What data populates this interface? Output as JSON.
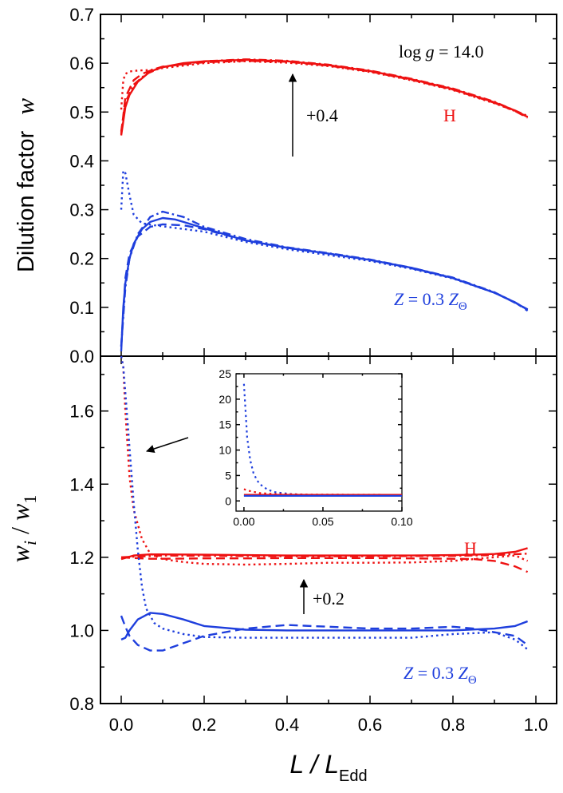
{
  "chart_data": [
    {
      "type": "line",
      "panel": "top",
      "ylabel": "Dilution factor",
      "ylabel_symbol": "w",
      "xlim": [
        -0.05,
        1.05
      ],
      "ylim": [
        0.0,
        0.7
      ],
      "xticks": [
        "0.0",
        "0.2",
        "0.4",
        "0.6",
        "0.8",
        "1.0"
      ],
      "yticks": [
        "0.0",
        "0.1",
        "0.2",
        "0.3",
        "0.4",
        "0.5",
        "0.6",
        "0.7"
      ],
      "annotation_gravity": {
        "prefix": "log ",
        "var": "g",
        "rest": " = 14.0"
      },
      "annotation_shift": "+0.4",
      "label_H": "H",
      "label_Z": {
        "var": "Z",
        "mid": " = 0.3 ",
        "var2": "Z",
        "sub": "Θ"
      },
      "series": [
        {
          "group": "H",
          "dash": "solid",
          "color": "#ee1111",
          "x": [
            0.0,
            0.01,
            0.02,
            0.04,
            0.07,
            0.1,
            0.15,
            0.2,
            0.3,
            0.4,
            0.5,
            0.6,
            0.7,
            0.8,
            0.9,
            0.95,
            0.98
          ],
          "y": [
            0.452,
            0.51,
            0.535,
            0.562,
            0.583,
            0.592,
            0.6,
            0.604,
            0.607,
            0.604,
            0.596,
            0.584,
            0.567,
            0.547,
            0.52,
            0.503,
            0.49
          ]
        },
        {
          "group": "H",
          "dash": "dashed",
          "color": "#ee1111",
          "x": [
            0.0,
            0.01,
            0.03,
            0.05,
            0.08,
            0.1,
            0.2,
            0.3,
            0.4,
            0.5,
            0.6,
            0.7,
            0.8,
            0.9,
            0.95,
            0.98
          ],
          "y": [
            0.455,
            0.53,
            0.565,
            0.578,
            0.588,
            0.593,
            0.602,
            0.605,
            0.603,
            0.595,
            0.583,
            0.566,
            0.546,
            0.519,
            0.502,
            0.488
          ]
        },
        {
          "group": "H",
          "dash": "dotted",
          "color": "#ee1111",
          "x": [
            0.0,
            0.005,
            0.01,
            0.02,
            0.04,
            0.07,
            0.1,
            0.2,
            0.3,
            0.4,
            0.5,
            0.6,
            0.7,
            0.8,
            0.9,
            0.95,
            0.98
          ],
          "y": [
            0.505,
            0.565,
            0.578,
            0.583,
            0.585,
            0.586,
            0.59,
            0.6,
            0.604,
            0.601,
            0.594,
            0.582,
            0.565,
            0.545,
            0.518,
            0.502,
            0.49
          ]
        },
        {
          "group": "H",
          "dash": "dashdot",
          "color": "#ee1111",
          "x": [
            0.0,
            0.01,
            0.03,
            0.06,
            0.1,
            0.2,
            0.3,
            0.4,
            0.5,
            0.6,
            0.7,
            0.8,
            0.9,
            0.98
          ],
          "y": [
            0.46,
            0.52,
            0.556,
            0.578,
            0.592,
            0.604,
            0.608,
            0.605,
            0.597,
            0.585,
            0.568,
            0.548,
            0.521,
            0.492
          ]
        },
        {
          "group": "Z",
          "dash": "solid",
          "color": "#1f3fdd",
          "x": [
            0.0,
            0.005,
            0.01,
            0.02,
            0.03,
            0.05,
            0.07,
            0.1,
            0.13,
            0.15,
            0.2,
            0.3,
            0.4,
            0.5,
            0.6,
            0.7,
            0.8,
            0.9,
            0.95,
            0.98
          ],
          "y": [
            0.01,
            0.1,
            0.15,
            0.2,
            0.23,
            0.26,
            0.275,
            0.283,
            0.28,
            0.275,
            0.262,
            0.237,
            0.222,
            0.21,
            0.197,
            0.181,
            0.16,
            0.13,
            0.11,
            0.095
          ]
        },
        {
          "group": "Z",
          "dash": "dashed",
          "color": "#1f3fdd",
          "x": [
            0.0,
            0.01,
            0.02,
            0.04,
            0.07,
            0.1,
            0.15,
            0.2,
            0.3,
            0.4,
            0.5,
            0.6,
            0.7,
            0.8,
            0.9,
            0.95,
            0.98
          ],
          "y": [
            0.02,
            0.16,
            0.21,
            0.245,
            0.265,
            0.27,
            0.268,
            0.26,
            0.237,
            0.222,
            0.21,
            0.197,
            0.18,
            0.16,
            0.13,
            0.11,
            0.093
          ]
        },
        {
          "group": "Z",
          "dash": "dotted",
          "color": "#1f3fdd",
          "x": [
            0.0,
            0.005,
            0.01,
            0.02,
            0.03,
            0.05,
            0.08,
            0.1,
            0.2,
            0.3,
            0.4,
            0.5,
            0.6,
            0.7,
            0.8,
            0.9,
            0.95,
            0.98
          ],
          "y": [
            0.3,
            0.38,
            0.375,
            0.33,
            0.29,
            0.272,
            0.268,
            0.266,
            0.255,
            0.234,
            0.219,
            0.207,
            0.195,
            0.179,
            0.159,
            0.13,
            0.11,
            0.095
          ]
        },
        {
          "group": "Z",
          "dash": "dashdot",
          "color": "#1f3fdd",
          "x": [
            0.0,
            0.01,
            0.02,
            0.04,
            0.07,
            0.1,
            0.15,
            0.2,
            0.3,
            0.4,
            0.5,
            0.6,
            0.7,
            0.8,
            0.9,
            0.98
          ],
          "y": [
            0.02,
            0.14,
            0.2,
            0.25,
            0.285,
            0.296,
            0.285,
            0.265,
            0.24,
            0.223,
            0.211,
            0.198,
            0.181,
            0.161,
            0.131,
            0.096
          ]
        }
      ]
    },
    {
      "type": "line",
      "panel": "bottom",
      "xlabel": "L / L",
      "xlabel_sub": "Edd",
      "ylabel_parts": {
        "w": "w",
        "i": "i",
        "slash": " / ",
        "one": "1"
      },
      "xlim": [
        -0.05,
        1.05
      ],
      "ylim": [
        0.8,
        1.75
      ],
      "xticks": [
        "0.0",
        "0.2",
        "0.4",
        "0.6",
        "0.8",
        "1.0"
      ],
      "yticks": [
        "0.8",
        "1.0",
        "1.2",
        "1.4",
        "1.6"
      ],
      "annotation_shift": "+0.2",
      "label_H": "H",
      "label_Z": {
        "var": "Z",
        "mid": " = 0.3 ",
        "var2": "Z",
        "sub": "Θ"
      },
      "series": [
        {
          "group": "H",
          "dash": "solid",
          "color": "#ee1111",
          "x": [
            0.0,
            0.03,
            0.07,
            0.1,
            0.2,
            0.3,
            0.4,
            0.5,
            0.6,
            0.7,
            0.8,
            0.85,
            0.9,
            0.95,
            0.98
          ],
          "y": [
            1.195,
            1.205,
            1.208,
            1.208,
            1.207,
            1.206,
            1.205,
            1.205,
            1.205,
            1.205,
            1.206,
            1.207,
            1.209,
            1.215,
            1.225
          ]
        },
        {
          "group": "H",
          "dash": "dashed",
          "color": "#ee1111",
          "x": [
            0.0,
            0.03,
            0.07,
            0.1,
            0.2,
            0.3,
            0.4,
            0.5,
            0.6,
            0.7,
            0.8,
            0.85,
            0.9,
            0.95,
            0.98
          ],
          "y": [
            1.2,
            1.198,
            1.196,
            1.196,
            1.197,
            1.197,
            1.198,
            1.198,
            1.198,
            1.197,
            1.196,
            1.195,
            1.19,
            1.175,
            1.16
          ]
        },
        {
          "group": "H",
          "dash": "dotted",
          "color": "#ee1111",
          "x": [
            0.0,
            0.005,
            0.01,
            0.02,
            0.03,
            0.05,
            0.07,
            0.1,
            0.15,
            0.2,
            0.3,
            0.4,
            0.5,
            0.6,
            0.7,
            0.8,
            0.85,
            0.9,
            0.95,
            0.98
          ],
          "y": [
            1.75,
            1.72,
            1.6,
            1.42,
            1.33,
            1.25,
            1.21,
            1.195,
            1.187,
            1.182,
            1.18,
            1.182,
            1.185,
            1.185,
            1.186,
            1.19,
            1.195,
            1.2,
            1.205,
            1.19
          ]
        },
        {
          "group": "H",
          "dash": "dashdot",
          "color": "#ee1111",
          "x": [
            0.0,
            0.1,
            0.2,
            0.4,
            0.6,
            0.8,
            0.9,
            0.98
          ],
          "y": [
            1.2,
            1.205,
            1.204,
            1.203,
            1.203,
            1.204,
            1.206,
            1.21
          ]
        },
        {
          "group": "Z",
          "dash": "solid",
          "color": "#1f3fdd",
          "x": [
            0.0,
            0.01,
            0.02,
            0.04,
            0.07,
            0.1,
            0.15,
            0.2,
            0.3,
            0.4,
            0.5,
            0.6,
            0.7,
            0.8,
            0.9,
            0.95,
            0.98
          ],
          "y": [
            0.975,
            0.98,
            1.0,
            1.03,
            1.048,
            1.045,
            1.03,
            1.012,
            1.002,
            1.0,
            1.0,
            1.0,
            1.0,
            1.0,
            1.005,
            1.012,
            1.025
          ]
        },
        {
          "group": "Z",
          "dash": "dashed",
          "color": "#1f3fdd",
          "x": [
            0.0,
            0.01,
            0.02,
            0.04,
            0.07,
            0.1,
            0.15,
            0.2,
            0.3,
            0.4,
            0.5,
            0.6,
            0.7,
            0.8,
            0.85,
            0.9,
            0.95,
            0.98
          ],
          "y": [
            1.04,
            1.01,
            0.985,
            0.96,
            0.945,
            0.945,
            0.965,
            0.985,
            1.005,
            1.015,
            1.01,
            1.005,
            1.005,
            1.01,
            1.005,
            0.995,
            0.985,
            0.96
          ]
        },
        {
          "group": "Z",
          "dash": "dotted",
          "color": "#1f3fdd",
          "x": [
            0.0,
            0.005,
            0.01,
            0.02,
            0.03,
            0.04,
            0.05,
            0.06,
            0.08,
            0.1,
            0.15,
            0.2,
            0.3,
            0.4,
            0.5,
            0.6,
            0.7,
            0.8,
            0.9,
            0.95,
            0.98
          ],
          "y": [
            1.75,
            1.72,
            1.65,
            1.5,
            1.35,
            1.22,
            1.12,
            1.06,
            1.02,
            1.005,
            0.99,
            0.982,
            0.98,
            0.98,
            0.98,
            0.98,
            0.98,
            0.99,
            0.995,
            0.975,
            0.948
          ]
        }
      ],
      "inset": {
        "xlim": [
          -0.005,
          0.1
        ],
        "ylim": [
          -2,
          25
        ],
        "xticks": [
          "0.00",
          "0.05",
          "0.10"
        ],
        "yticks": [
          "0",
          "5",
          "10",
          "15",
          "20",
          "25"
        ],
        "series": [
          {
            "group": "Z",
            "dash": "dotted",
            "color": "#1f3fdd",
            "x": [
              0.0,
              0.002,
              0.004,
              0.006,
              0.008,
              0.01,
              0.015,
              0.02,
              0.03,
              0.04,
              0.06,
              0.1
            ],
            "y": [
              23.0,
              12.5,
              8.0,
              5.5,
              4.2,
              3.3,
              2.2,
              1.7,
              1.35,
              1.2,
              1.08,
              1.05
            ]
          },
          {
            "group": "H",
            "dash": "dotted",
            "color": "#ee1111",
            "x": [
              0.0,
              0.003,
              0.006,
              0.01,
              0.02,
              0.04,
              0.1
            ],
            "y": [
              2.3,
              2.0,
              1.8,
              1.55,
              1.35,
              1.25,
              1.2
            ]
          },
          {
            "group": "H",
            "dash": "solid",
            "color": "#ee1111",
            "x": [
              0.0,
              0.1
            ],
            "y": [
              1.2,
              1.2
            ]
          },
          {
            "group": "Z",
            "dash": "solid",
            "color": "#1f3fdd",
            "x": [
              0.0,
              0.1
            ],
            "y": [
              1.0,
              1.0
            ]
          }
        ]
      }
    }
  ]
}
